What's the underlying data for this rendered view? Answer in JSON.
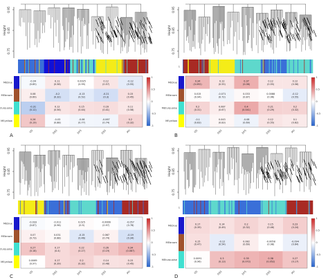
{
  "figure_labels": [
    "A",
    "B",
    "C",
    "D"
  ],
  "chart_data": [
    {
      "panel": "A",
      "type": "heatmap",
      "dendrogram_ylabel": "Height",
      "dendrogram_yticks": [
        "0.95",
        "0.85",
        "0.75"
      ],
      "module_bar_label": "",
      "module_colors": [
        "#3a6fd8",
        "#1010d8",
        "#5ed8cc",
        "#f4ec18",
        "#a82a24"
      ],
      "row_labels": [
        "MEblue",
        "MEbrown",
        "MEturquoise",
        "MEyellow"
      ],
      "row_colors": [
        "#1818cc",
        "#a0522d",
        "#40e0d0",
        "#ffff00"
      ],
      "col_labels": [
        "OS",
        "OSS",
        "DFS",
        "DSS",
        "PFI"
      ],
      "cells": [
        [
          "-0.04\n(0.85)",
          "0.11\n(0.58)",
          "0.0025\n(0.99)",
          "0.12\n(0.57)",
          "-0.12\n(0.55)"
        ],
        [
          "0.08\n(0.69)",
          "-0.2\n(0.32)",
          "-0.13\n(0.52)",
          "-0.21\n(0.3)",
          "0.15\n(0.45)"
        ],
        [
          "-0.31\n(0.12)",
          "0.12\n(0.56)",
          "0.15\n(0.44)",
          "0.16\n(0.41)",
          "0.11\n(0.58)"
        ],
        [
          "0.26\n(0.19)",
          "-0.03\n(0.88)",
          "-0.06\n(0.77)",
          "-0.067\n(0.74)",
          "0.2\n(0.32)"
        ]
      ],
      "values": [
        [
          -0.04,
          0.11,
          0.0025,
          0.12,
          -0.12
        ],
        [
          0.08,
          -0.2,
          -0.13,
          -0.21,
          0.15
        ],
        [
          -0.31,
          0.12,
          0.15,
          0.16,
          0.11
        ],
        [
          0.26,
          -0.03,
          -0.06,
          -0.067,
          0.2
        ]
      ],
      "colorbar_ticks": [
        "1",
        "0.5",
        "0",
        "-0.5",
        "-1"
      ],
      "colorbar_range": [
        -1,
        1
      ]
    },
    {
      "panel": "B",
      "type": "heatmap",
      "dendrogram_ylabel": "Height",
      "dendrogram_yticks": [
        "0.95",
        "0.85",
        "0.75"
      ],
      "module_bar_label": "1",
      "module_colors": [
        "#a82a24",
        "#f4ec18",
        "#5ed8cc",
        "#3a6fd8",
        "#5ed8cc"
      ],
      "row_labels": [
        "MEblue",
        "MEbrown",
        "MEturquoise",
        "MEyellow"
      ],
      "row_colors": [
        "#1818cc",
        "#a0522d",
        "#40e0d0",
        "#ffff00"
      ],
      "col_labels": [
        "OS",
        "OSS",
        "DFS",
        "DSS",
        "PFI"
      ],
      "cells": [
        [
          "0.34\n(0.092)",
          "0.12\n(0.55)",
          "0.37\n(0.06)",
          "0.12\n(0.55)",
          "0.12\n(0.56)"
        ],
        [
          "0.015\n(0.94)",
          "-0.071\n(0.72)",
          "0.033\n(0.87)",
          "0.0088\n(0.96)",
          "-0.12\n(0.55)"
        ],
        [
          "0.2\n(0.31)",
          "0.087\n(0.67)",
          "0.4\n(0.041)",
          "0.21\n(0.29)",
          "0.2\n(0.32)"
        ],
        [
          "-0.1\n(0.63)",
          "0.043\n(0.83)",
          "-0.08\n(0.69)",
          "0.12\n(0.55)",
          "0.1\n(0.62)"
        ]
      ],
      "values": [
        [
          0.34,
          0.12,
          0.37,
          0.12,
          0.12
        ],
        [
          0.015,
          -0.071,
          0.033,
          0.0088,
          -0.12
        ],
        [
          0.2,
          0.087,
          0.4,
          0.21,
          0.2
        ],
        [
          -0.1,
          0.043,
          -0.08,
          0.12,
          0.1
        ]
      ],
      "colorbar_ticks": [
        "1",
        "0.5",
        "0",
        "-0.5",
        "-1"
      ],
      "colorbar_range": [
        -1,
        1
      ]
    },
    {
      "panel": "C",
      "type": "heatmap",
      "dendrogram_ylabel": "Height",
      "dendrogram_yticks": [
        "0.95",
        "0.85",
        "0.75"
      ],
      "module_bar_label": "",
      "module_colors": [
        "#f4ec18",
        "#3a6fd8",
        "#5ed8cc",
        "#3a6fd8",
        "#a82a24"
      ],
      "row_labels": [
        "MEblue",
        "MEbrown",
        "MEturquoise",
        "MEyellow"
      ],
      "row_colors": [
        "#1818cc",
        "#a0522d",
        "#40e0d0",
        "#ffff00"
      ],
      "col_labels": [
        "OS",
        "OSS",
        "DFS",
        "DSS",
        "PFI"
      ],
      "cells": [
        [
          "-0.033\n(0.87)",
          "-0.011\n(0.96)",
          "0.025\n(0.9)",
          "-0.0066\n(0.97)",
          "-0.057\n(0.78)"
        ],
        [
          "0.07\n(0.73)",
          "0.031\n(0.88)",
          "-0.15\n(0.46)",
          "0.067\n(0.74)",
          "-0.19\n(0.34)"
        ],
        [
          "0.27\n(0.18)",
          "0.17\n(0.4)",
          "0.22\n(0.27)",
          "0.26\n(0.19)",
          "0.34\n(0.087)"
        ],
        [
          "0.0069\n(0.97)",
          "0.17\n(0.39)",
          "0.2\n(0.32)",
          "0.14\n(0.48)",
          "0.15\n(0.45)"
        ]
      ],
      "values": [
        [
          -0.033,
          -0.011,
          0.025,
          -0.0066,
          -0.057
        ],
        [
          0.07,
          0.031,
          -0.15,
          0.067,
          -0.19
        ],
        [
          0.27,
          0.17,
          0.22,
          0.26,
          0.34
        ],
        [
          0.0069,
          0.17,
          0.2,
          0.14,
          0.15
        ]
      ],
      "colorbar_ticks": [
        "1",
        "0.5",
        "0",
        "-0.5",
        "-1"
      ],
      "colorbar_range": [
        -1,
        1
      ]
    },
    {
      "panel": "D",
      "type": "heatmap",
      "dendrogram_ylabel": "Height",
      "dendrogram_yticks": [
        "0.95",
        "0.85",
        "0.75"
      ],
      "module_bar_label": "1",
      "module_colors": [
        "#3a6fd8",
        "#5ed8cc",
        "#3a6fd8",
        "#5ed8cc",
        "#a82a24"
      ],
      "row_labels": [
        "MEblue",
        "MEbrown",
        "MEturquoise"
      ],
      "row_colors": [
        "#1818cc",
        "#a0522d",
        "#40e0d0"
      ],
      "col_labels": [
        "OS",
        "OSS",
        "DFS",
        "DSS",
        "PFI"
      ],
      "cells": [
        [
          "0.17\n(0.39)",
          "0.14\n(0.49)",
          "0.2\n(0.32)",
          "0.15\n(0.46)",
          "0.23\n(0.24)"
        ],
        [
          "0.15\n(0.47)",
          "-0.12\n(0.54)",
          "0.082\n(0.69)",
          "-0.0058\n(0.98)",
          "-0.094\n(0.64)"
        ],
        [
          "0.0091\n(0.96)",
          "0.3\n(0.13)",
          "0.35\n(0.072)",
          "0.38\n(0.052)",
          "0.27\n(0.17)"
        ]
      ],
      "values": [
        [
          0.17,
          0.14,
          0.2,
          0.15,
          0.23
        ],
        [
          0.15,
          -0.12,
          0.082,
          -0.0058,
          -0.094
        ],
        [
          0.0091,
          0.3,
          0.35,
          0.38,
          0.27
        ]
      ],
      "colorbar_ticks": [
        "1",
        "0.5",
        "0",
        "-0.5",
        "-1"
      ],
      "colorbar_range": [
        -1,
        1
      ]
    }
  ]
}
